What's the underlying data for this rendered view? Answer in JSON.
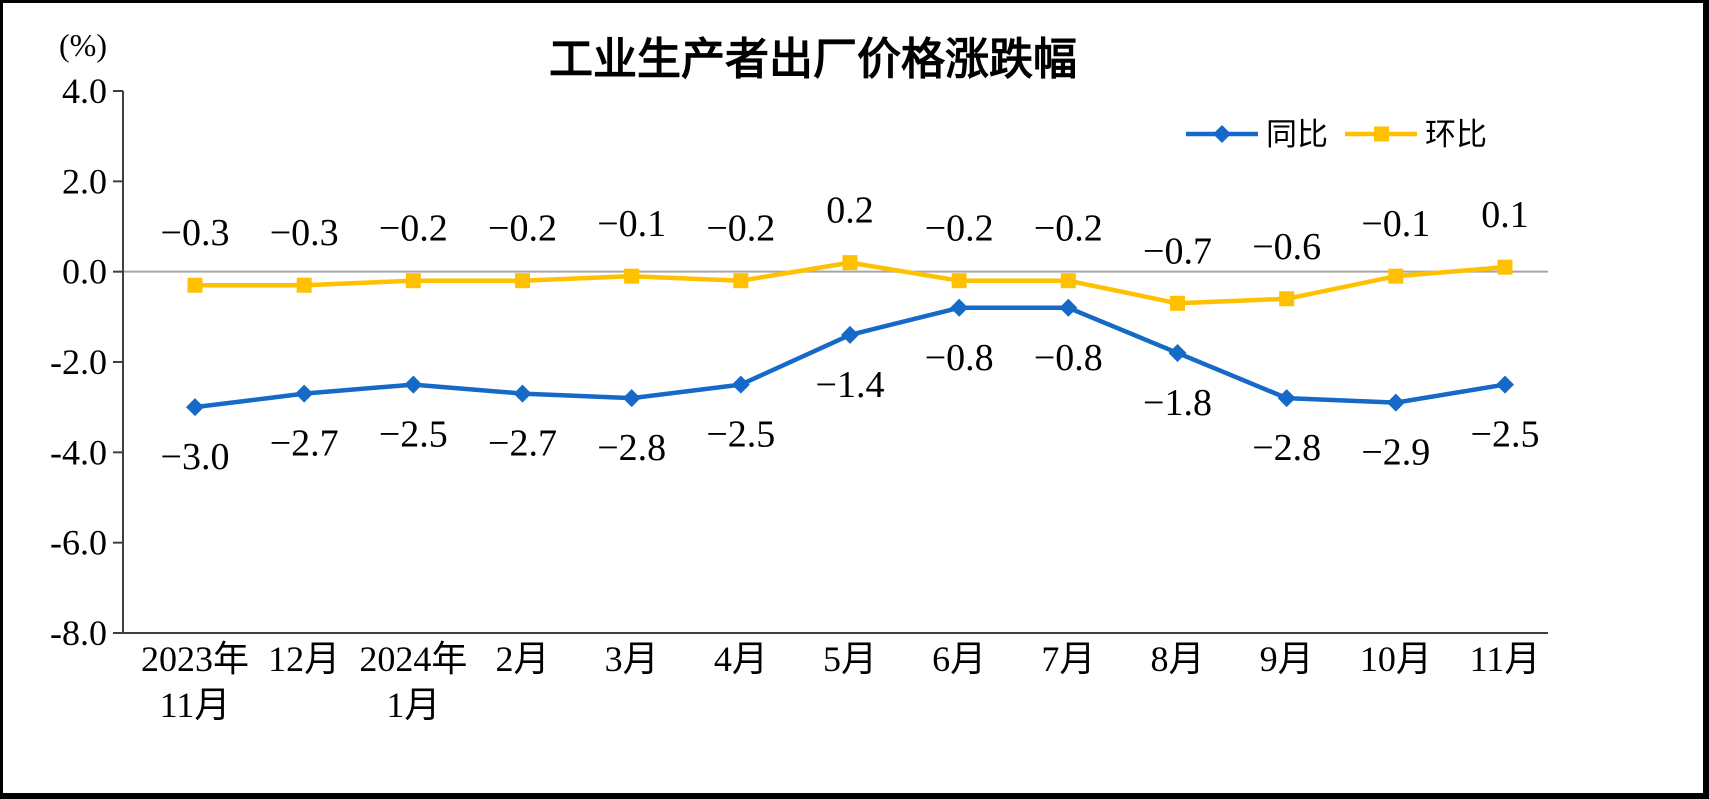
{
  "chart_data": {
    "type": "line",
    "title": "工业生产者出厂价格涨跌幅",
    "ylabel": "(%)",
    "xlabel": "",
    "ylim": [
      -8.0,
      4.0
    ],
    "yticks": [
      "4.0",
      "2.0",
      "0.0",
      "-2.0",
      "-4.0",
      "-6.0",
      "-8.0"
    ],
    "grid": false,
    "legend_position": "top-right",
    "categories": [
      "2023年\n11月",
      "12月",
      "2024年\n1月",
      "2月",
      "3月",
      "4月",
      "5月",
      "6月",
      "7月",
      "8月",
      "9月",
      "10月",
      "11月"
    ],
    "series": [
      {
        "id": "yoy",
        "name": "同比",
        "color": "#1569C7",
        "marker": "diamond",
        "label_position": "below",
        "values": [
          -3.0,
          -2.7,
          -2.5,
          -2.7,
          -2.8,
          -2.5,
          -1.4,
          -0.8,
          -0.8,
          -1.8,
          -2.8,
          -2.9,
          -2.5
        ],
        "labels": [
          "−3.0",
          "−2.7",
          "−2.5",
          "−2.7",
          "−2.8",
          "−2.5",
          "−1.4",
          "−0.8",
          "−0.8",
          "−1.8",
          "−2.8",
          "−2.9",
          "−2.5"
        ]
      },
      {
        "id": "mom",
        "name": "环比",
        "color": "#FFC000",
        "marker": "square",
        "label_position": "above",
        "values": [
          -0.3,
          -0.3,
          -0.2,
          -0.2,
          -0.1,
          -0.2,
          0.2,
          -0.2,
          -0.2,
          -0.7,
          -0.6,
          -0.1,
          0.1
        ],
        "labels": [
          "−0.3",
          "−0.3",
          "−0.2",
          "−0.2",
          "−0.1",
          "−0.2",
          "0.2",
          "−0.2",
          "−0.2",
          "−0.7",
          "−0.6",
          "−0.1",
          "0.1"
        ]
      }
    ]
  }
}
